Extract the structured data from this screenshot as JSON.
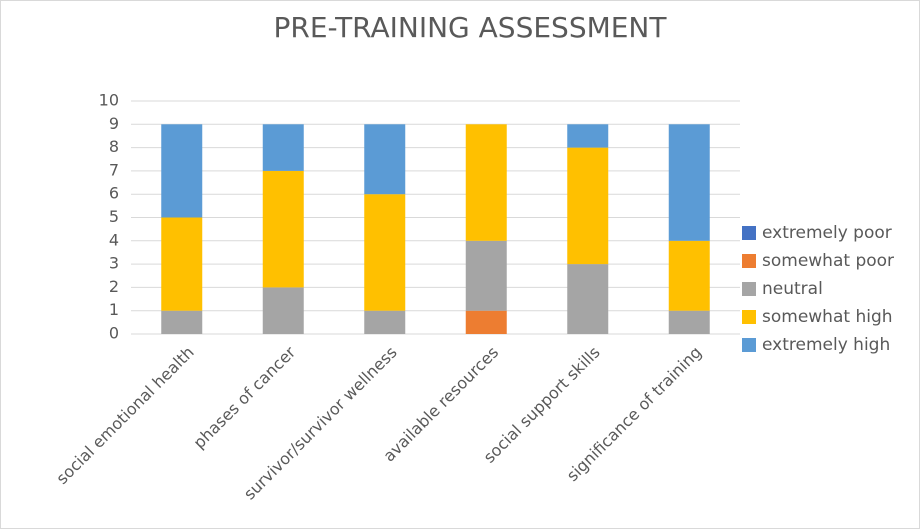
{
  "chart_data": {
    "type": "stacked_bar",
    "title": "PRE-TRAINING ASSESSMENT",
    "categories": [
      "social emotional health",
      "phases of cancer",
      "survivor/survivor wellness",
      "available resources",
      "social support skills",
      "significance of training"
    ],
    "series": [
      {
        "name": "extremely poor",
        "color": "#4472c4",
        "values": [
          0,
          0,
          0,
          0,
          0,
          0
        ]
      },
      {
        "name": "somewhat poor",
        "color": "#ed7d31",
        "values": [
          0,
          0,
          0,
          1,
          0,
          0
        ]
      },
      {
        "name": "neutral",
        "color": "#a5a5a5",
        "values": [
          1,
          2,
          1,
          3,
          3,
          1
        ]
      },
      {
        "name": "somewhat high",
        "color": "#ffc000",
        "values": [
          4,
          5,
          5,
          5,
          5,
          3
        ]
      },
      {
        "name": "extremely high",
        "color": "#5b9bd5",
        "values": [
          4,
          2,
          3,
          0,
          1,
          5
        ]
      }
    ],
    "ylim": [
      0,
      10
    ],
    "yticks": [
      0,
      1,
      2,
      3,
      4,
      5,
      6,
      7,
      8,
      9,
      10
    ],
    "grid": true,
    "legend": "right"
  }
}
